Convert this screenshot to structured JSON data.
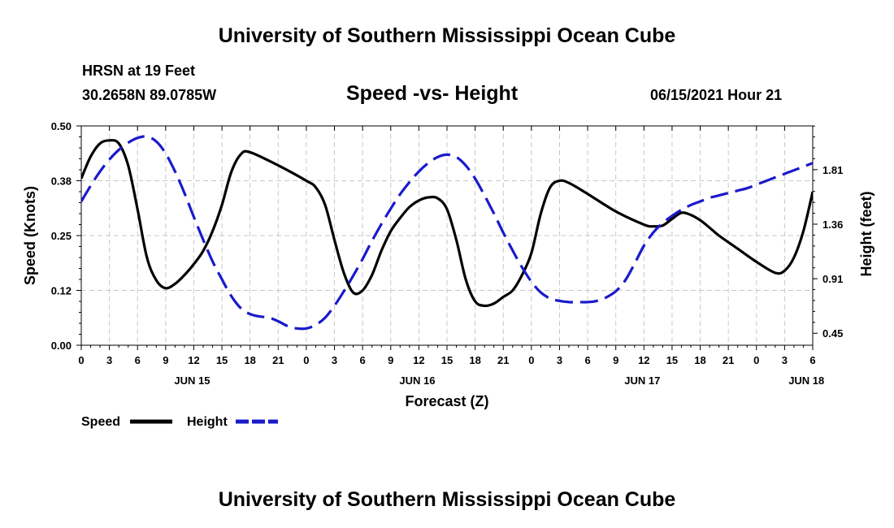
{
  "header": {
    "top_title": "University of Southern Mississippi Ocean Cube",
    "station": "HRSN at 19 Feet",
    "coords": "30.2658N  89.0785W",
    "subtitle": "Speed -vs- Height",
    "datetime": "06/15/2021 Hour 21",
    "bottom_title": "University of Southern Mississippi Ocean Cube"
  },
  "colors": {
    "speed": "#000000",
    "height": "#1a1acc",
    "grid": "#c8c8c8"
  },
  "chart_data": {
    "type": "line",
    "title": "Speed -vs- Height",
    "xlabel": "Forecast (Z)",
    "ylabel": "Speed (Knots)",
    "y2label": "Height (feet)",
    "xlim": [
      0,
      78
    ],
    "ylim": [
      0,
      0.5
    ],
    "y2lim": [
      0.35,
      2.18
    ],
    "grid": true,
    "x_ticks": [
      0,
      3,
      6,
      9,
      12,
      15,
      18,
      21,
      24,
      27,
      30,
      33,
      36,
      39,
      42,
      45,
      48,
      51,
      54,
      57,
      60,
      63,
      66,
      69,
      72,
      75,
      78
    ],
    "x_tick_labels": [
      "0",
      "3",
      "6",
      "9",
      "12",
      "15",
      "18",
      "21",
      "0",
      "3",
      "6",
      "9",
      "12",
      "15",
      "18",
      "21",
      "0",
      "3",
      "6",
      "9",
      "12",
      "15",
      "18",
      "21",
      "0",
      "3",
      "6"
    ],
    "date_labels": [
      {
        "x": 12,
        "label": "JUN 15"
      },
      {
        "x": 36,
        "label": "JUN 16"
      },
      {
        "x": 60,
        "label": "JUN 17"
      },
      {
        "x": 77.5,
        "label": "JUN 18"
      }
    ],
    "y_ticks": [
      0.0,
      0.125,
      0.25,
      0.375,
      0.5
    ],
    "y_tick_labels": [
      "0.00",
      "0.12",
      "0.25",
      "0.38",
      "0.50"
    ],
    "y2_ticks": [
      0.45,
      0.905,
      1.36,
      1.815
    ],
    "y2_tick_labels": [
      "0.45",
      "0.91",
      "1.36",
      "1.81"
    ],
    "series": [
      {
        "name": "Speed",
        "axis": "left",
        "style": "solid",
        "x": [
          0,
          1,
          2,
          3,
          4,
          5,
          6,
          7,
          8,
          9,
          10,
          11,
          12,
          13,
          14,
          15,
          16,
          17,
          18,
          21,
          24,
          25,
          26,
          27,
          28,
          29,
          30,
          31,
          32,
          33,
          34,
          35,
          36,
          37,
          38,
          39,
          40,
          41,
          42,
          43,
          44,
          45,
          46,
          47,
          48,
          49,
          50,
          51,
          52,
          54,
          57,
          60,
          61,
          62,
          63,
          64,
          65,
          66,
          67,
          68,
          70,
          72,
          74,
          75,
          76,
          77,
          78
        ],
        "values": [
          0.38,
          0.43,
          0.46,
          0.467,
          0.46,
          0.41,
          0.31,
          0.2,
          0.148,
          0.13,
          0.14,
          0.16,
          0.185,
          0.215,
          0.26,
          0.32,
          0.395,
          0.435,
          0.44,
          0.41,
          0.375,
          0.36,
          0.32,
          0.24,
          0.165,
          0.12,
          0.125,
          0.16,
          0.215,
          0.26,
          0.29,
          0.315,
          0.33,
          0.337,
          0.335,
          0.31,
          0.24,
          0.15,
          0.1,
          0.09,
          0.095,
          0.11,
          0.125,
          0.16,
          0.21,
          0.3,
          0.36,
          0.375,
          0.37,
          0.345,
          0.305,
          0.275,
          0.271,
          0.273,
          0.288,
          0.302,
          0.297,
          0.285,
          0.268,
          0.25,
          0.22,
          0.19,
          0.165,
          0.17,
          0.2,
          0.26,
          0.35
        ]
      },
      {
        "name": "Height",
        "axis": "right",
        "style": "dashed",
        "x": [
          0,
          1,
          2,
          3,
          4,
          5,
          6,
          7,
          8,
          9,
          10,
          11,
          12,
          13,
          14,
          15,
          16,
          17,
          18,
          19,
          20,
          21,
          22,
          23,
          24,
          25,
          26,
          27,
          28,
          29,
          30,
          31,
          32,
          33,
          34,
          35,
          36,
          37,
          38,
          39,
          40,
          41,
          42,
          43,
          44,
          45,
          46,
          47,
          48,
          49,
          50,
          51,
          52,
          53,
          54,
          55,
          56,
          57,
          58,
          59,
          60,
          61,
          62,
          63,
          64,
          65,
          66,
          67,
          68,
          69,
          70,
          71,
          72,
          73,
          74,
          75,
          76,
          77,
          78
        ],
        "values": [
          1.55,
          1.68,
          1.8,
          1.9,
          1.98,
          2.04,
          2.08,
          2.09,
          2.05,
          1.95,
          1.8,
          1.62,
          1.42,
          1.23,
          1.05,
          0.9,
          0.76,
          0.66,
          0.61,
          0.59,
          0.58,
          0.55,
          0.51,
          0.49,
          0.49,
          0.52,
          0.58,
          0.68,
          0.8,
          0.93,
          1.07,
          1.22,
          1.36,
          1.49,
          1.61,
          1.71,
          1.8,
          1.87,
          1.92,
          1.94,
          1.92,
          1.85,
          1.74,
          1.6,
          1.45,
          1.29,
          1.14,
          1.0,
          0.88,
          0.79,
          0.74,
          0.72,
          0.71,
          0.71,
          0.71,
          0.72,
          0.75,
          0.8,
          0.89,
          1.03,
          1.18,
          1.29,
          1.37,
          1.43,
          1.48,
          1.52,
          1.55,
          1.58,
          1.6,
          1.62,
          1.64,
          1.66,
          1.69,
          1.72,
          1.75,
          1.78,
          1.81,
          1.84,
          1.87
        ]
      }
    ],
    "legend": [
      {
        "label": "Speed",
        "series": "Speed"
      },
      {
        "label": "Height",
        "series": "Height"
      }
    ]
  }
}
